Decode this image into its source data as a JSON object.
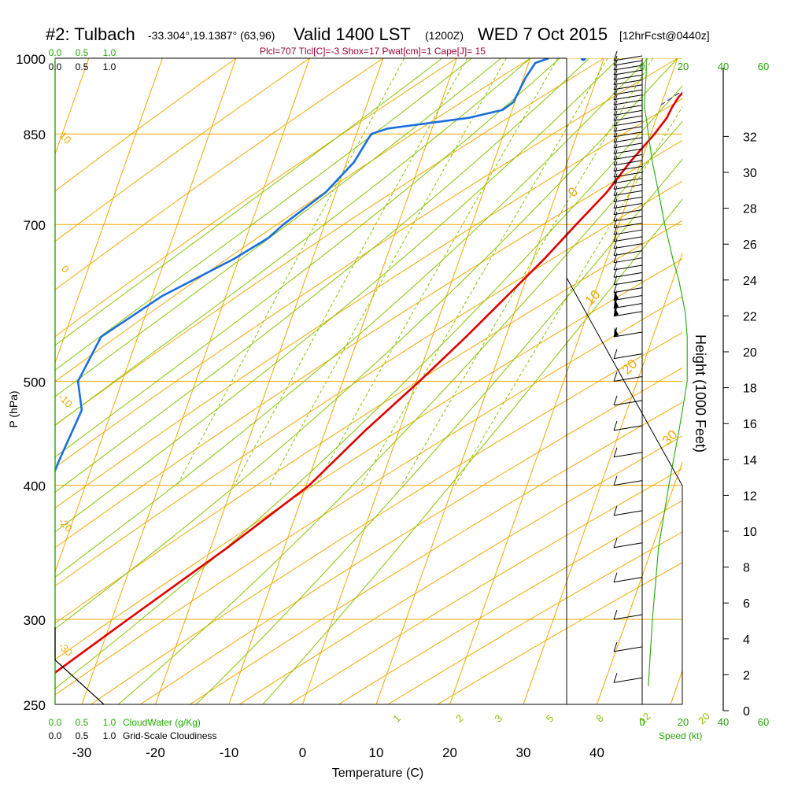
{
  "header": {
    "station": "#2: Tulbach",
    "coords": "-33.304°,19.1387° (63,96)",
    "valid": "Valid 1400 LST",
    "utc": "(1200Z)",
    "date": "WED 7 Oct 2015",
    "forecast": "[12hrFcst@0440z]",
    "params": "Plcl=707 Tlcl[C]=-3 Shox=17 Pwat[cm]=1 Cape[J]= 15"
  },
  "colors": {
    "temperature": "#e00000",
    "dewpoint": "#1a6fe0",
    "isobar": "#f2a900",
    "isotherm": "#f2a900",
    "dry_adiabat": "#f2a900",
    "moist_adiabat": "#88c400",
    "mixing_ratio": "#88c400",
    "green_label": "#22aa00",
    "params_text": "#990033"
  },
  "legends": {
    "top_cloudwater_ticks": [
      "0.0",
      "0.5",
      "1.0"
    ],
    "top_cloudiness_ticks": [
      "0.0",
      "0.5",
      "1.0"
    ],
    "bottom_cloudwater_ticks": [
      "0.0",
      "0.5",
      "1.0"
    ],
    "bottom_cloudwater_label": "CloudWater (g/Kg)",
    "bottom_cloudiness_ticks": [
      "0.0",
      "0.5",
      "1.0"
    ],
    "bottom_cloudiness_label": "Grid-Scale Cloudiness",
    "speed_top_ticks": [
      "0",
      "20",
      "40",
      "60"
    ],
    "speed_bottom_ticks": [
      "0",
      "20",
      "40",
      "60"
    ],
    "speed_label": "Speed (kt)"
  },
  "chart_data": {
    "type": "skew-t",
    "xlabel": "Temperature (C)",
    "ylabel": "P (hPa)",
    "right_axis_label": "Height (1000 Feet)",
    "x_ticks": [
      -30,
      -20,
      -10,
      0,
      10,
      20,
      30,
      40
    ],
    "p_ticks": [
      250,
      300,
      400,
      500,
      700,
      850,
      1000
    ],
    "p_range": [
      250,
      1000
    ],
    "height_ticks": [
      0,
      2,
      4,
      6,
      8,
      10,
      12,
      14,
      16,
      18,
      20,
      22,
      24,
      26,
      28,
      30,
      32
    ],
    "isotherm_labels": [
      "0",
      "10",
      "20",
      "30"
    ],
    "left_isotherm_labels": [
      "10",
      "0",
      "-10",
      "-20",
      "-30"
    ],
    "mixing_ratio_labels": [
      "1",
      "2",
      "3",
      "5",
      "8",
      "12",
      "20"
    ],
    "mixing_ratios": [
      1,
      2,
      3,
      5,
      8,
      12,
      20
    ],
    "temperature_profile": [
      {
        "p": 1000,
        "t": 26.8
      },
      {
        "p": 980,
        "t": 25.0
      },
      {
        "p": 950,
        "t": 23.2
      },
      {
        "p": 920,
        "t": 22.0
      },
      {
        "p": 900,
        "t": 21.6
      },
      {
        "p": 880,
        "t": 21.4
      },
      {
        "p": 850,
        "t": 20.5
      },
      {
        "p": 800,
        "t": 18.5
      },
      {
        "p": 750,
        "t": 16.8
      },
      {
        "p": 700,
        "t": 14.2
      },
      {
        "p": 650,
        "t": 11.5
      },
      {
        "p": 600,
        "t": 8.2
      },
      {
        "p": 550,
        "t": 4.6
      },
      {
        "p": 500,
        "t": 0.4
      },
      {
        "p": 450,
        "t": -4.6
      },
      {
        "p": 400,
        "t": -9.6
      },
      {
        "p": 350,
        "t": -17.7
      },
      {
        "p": 300,
        "t": -27.8
      },
      {
        "p": 265,
        "t": -35.8
      }
    ],
    "dewpoint_profile": [
      {
        "p": 1000,
        "t": 2.5
      },
      {
        "p": 990,
        "t": 0.9
      },
      {
        "p": 960,
        "t": 0.3
      },
      {
        "p": 910,
        "t": -0.2
      },
      {
        "p": 895,
        "t": -1.3
      },
      {
        "p": 880,
        "t": -5.5
      },
      {
        "p": 860,
        "t": -16.0
      },
      {
        "p": 850,
        "t": -18.0
      },
      {
        "p": 800,
        "t": -19.0
      },
      {
        "p": 750,
        "t": -21.4
      },
      {
        "p": 700,
        "t": -25.6
      },
      {
        "p": 680,
        "t": -27.0
      },
      {
        "p": 650,
        "t": -30.7
      },
      {
        "p": 600,
        "t": -38.7
      },
      {
        "p": 550,
        "t": -45.0
      },
      {
        "p": 500,
        "t": -46.0
      },
      {
        "p": 470,
        "t": -44.1
      },
      {
        "p": 420,
        "t": -44.8
      },
      {
        "p": 400,
        "t": -44.9
      },
      {
        "p": 350,
        "t": -45.8
      },
      {
        "p": 310,
        "t": -47.4
      },
      {
        "p": 300,
        "t": -49.2
      },
      {
        "p": 285,
        "t": -51.8
      },
      {
        "p": 265,
        "t": -56.8
      }
    ],
    "parcel_profile": [
      {
        "p": 1000,
        "t": 27.0
      },
      {
        "p": 950,
        "t": 23.6
      },
      {
        "p": 905,
        "t": 20.0
      }
    ],
    "surface_temperature": 28.0,
    "surface_dewpoint": 7.2,
    "cloudwater_profile": [],
    "cloudiness_profile": [
      {
        "p": 250,
        "v": 1.0
      },
      {
        "p": 275,
        "v": 0.0
      },
      {
        "p": 295,
        "v": 0.0
      }
    ],
    "wind_speed_profile": [
      {
        "p": 1000,
        "kt": 2
      },
      {
        "p": 970,
        "kt": 2
      },
      {
        "p": 900,
        "kt": 1
      },
      {
        "p": 880,
        "kt": 2
      },
      {
        "p": 850,
        "kt": 3
      },
      {
        "p": 800,
        "kt": 5
      },
      {
        "p": 750,
        "kt": 8
      },
      {
        "p": 700,
        "kt": 11
      },
      {
        "p": 650,
        "kt": 15
      },
      {
        "p": 620,
        "kt": 18
      },
      {
        "p": 580,
        "kt": 21
      },
      {
        "p": 550,
        "kt": 22
      },
      {
        "p": 500,
        "kt": 22
      },
      {
        "p": 450,
        "kt": 18
      },
      {
        "p": 400,
        "kt": 13
      },
      {
        "p": 350,
        "kt": 8
      },
      {
        "p": 300,
        "kt": 5
      },
      {
        "p": 260,
        "kt": 3
      }
    ],
    "wind_barb_pressures": [
      995,
      985,
      975,
      965,
      955,
      945,
      935,
      925,
      915,
      905,
      895,
      885,
      875,
      865,
      855,
      845,
      835,
      825,
      815,
      805,
      795,
      785,
      775,
      765,
      755,
      745,
      735,
      725,
      715,
      705,
      695,
      685,
      675,
      665,
      655,
      645,
      635,
      625,
      615,
      605,
      595,
      585,
      575,
      550,
      525,
      500,
      475,
      450,
      425,
      400,
      375,
      350,
      325,
      300,
      280,
      262
    ]
  }
}
